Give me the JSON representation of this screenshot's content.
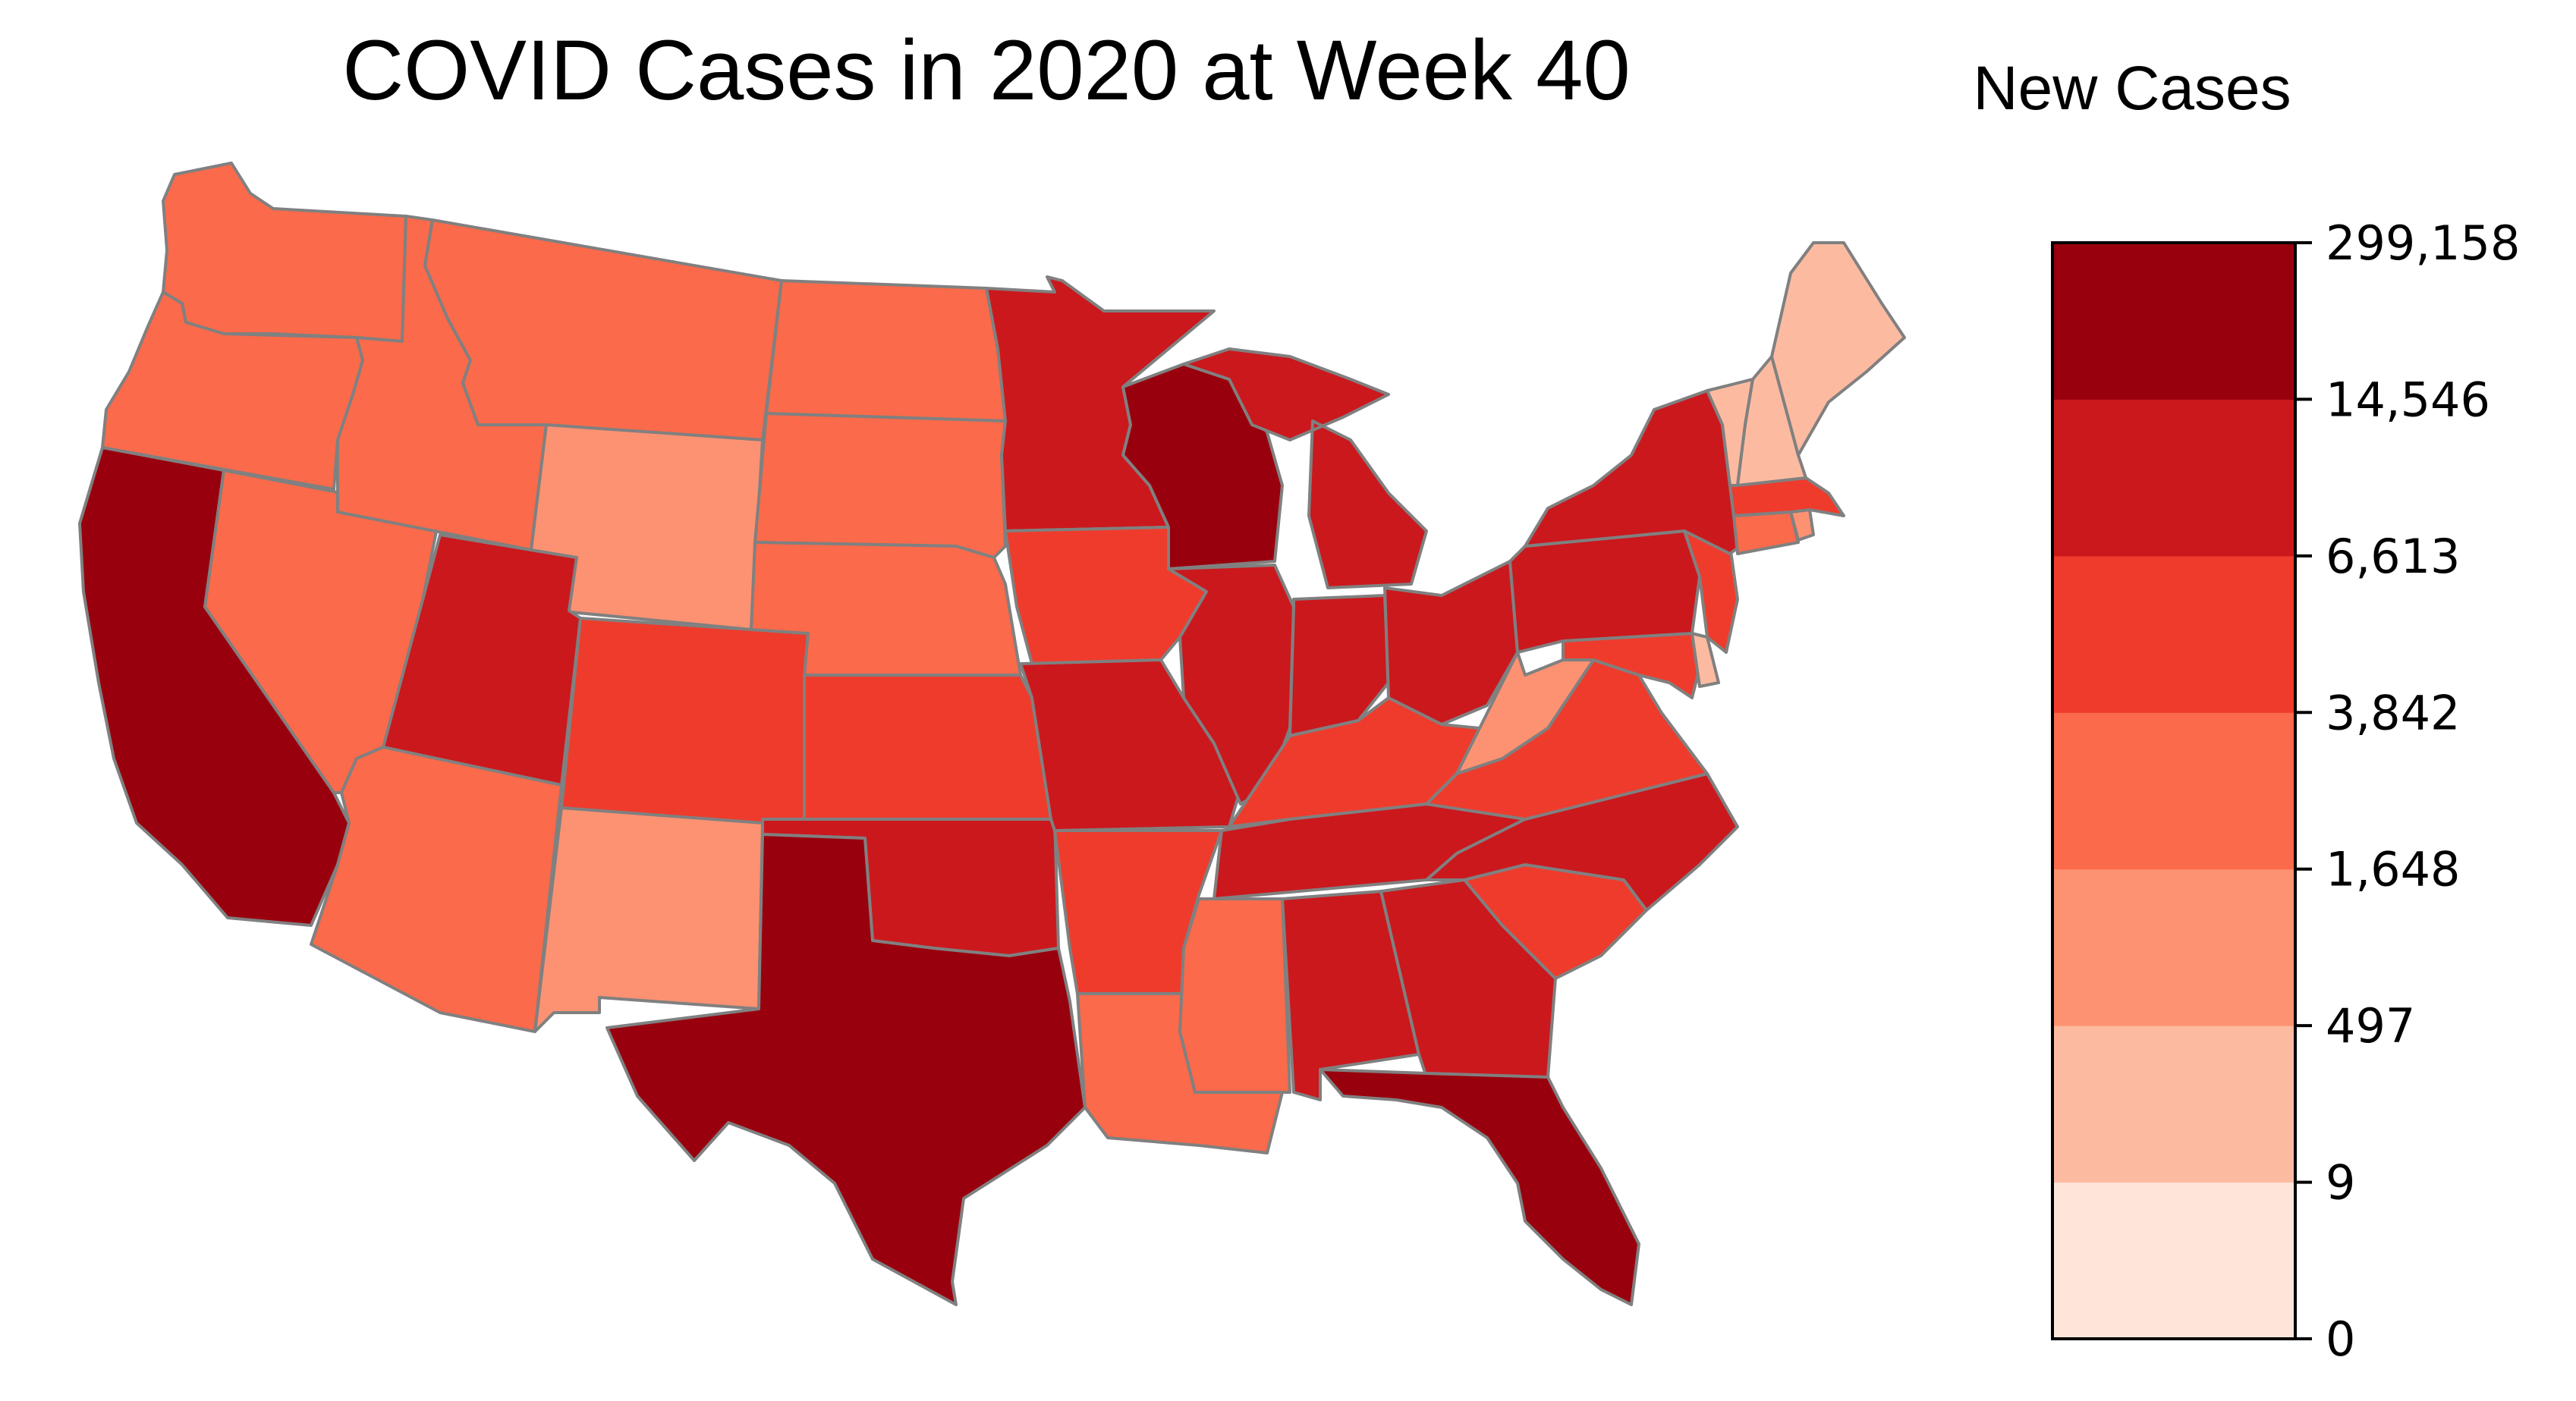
{
  "title": "COVID Cases in 2020 at Week 40",
  "legend": {
    "title": "New Cases",
    "ticks": [
      "299,158",
      "14,546",
      "6,613",
      "3,842",
      "1,648",
      "497",
      "9",
      "0"
    ],
    "colors": [
      "#fee5d9",
      "#fcbba1",
      "#fc9272",
      "#fb6a4a",
      "#ef3b2c",
      "#cb181d",
      "#99000d"
    ],
    "border_color": "#808080"
  },
  "states": [
    {
      "id": "WA",
      "name": "Washington",
      "bin": 3
    },
    {
      "id": "OR",
      "name": "Oregon",
      "bin": 3
    },
    {
      "id": "CA",
      "name": "California",
      "bin": 6
    },
    {
      "id": "NV",
      "name": "Nevada",
      "bin": 3
    },
    {
      "id": "ID",
      "name": "Idaho",
      "bin": 3
    },
    {
      "id": "MT",
      "name": "Montana",
      "bin": 3
    },
    {
      "id": "WY",
      "name": "Wyoming",
      "bin": 2
    },
    {
      "id": "UT",
      "name": "Utah",
      "bin": 5
    },
    {
      "id": "AZ",
      "name": "Arizona",
      "bin": 3
    },
    {
      "id": "CO",
      "name": "Colorado",
      "bin": 4
    },
    {
      "id": "NM",
      "name": "New Mexico",
      "bin": 2
    },
    {
      "id": "ND",
      "name": "North Dakota",
      "bin": 3
    },
    {
      "id": "SD",
      "name": "South Dakota",
      "bin": 3
    },
    {
      "id": "NE",
      "name": "Nebraska",
      "bin": 3
    },
    {
      "id": "KS",
      "name": "Kansas",
      "bin": 4
    },
    {
      "id": "OK",
      "name": "Oklahoma",
      "bin": 5
    },
    {
      "id": "TX",
      "name": "Texas",
      "bin": 6
    },
    {
      "id": "MN",
      "name": "Minnesota",
      "bin": 5
    },
    {
      "id": "IA",
      "name": "Iowa",
      "bin": 4
    },
    {
      "id": "MO",
      "name": "Missouri",
      "bin": 5
    },
    {
      "id": "AR",
      "name": "Arkansas",
      "bin": 4
    },
    {
      "id": "LA",
      "name": "Louisiana",
      "bin": 3
    },
    {
      "id": "WI",
      "name": "Wisconsin",
      "bin": 6
    },
    {
      "id": "IL",
      "name": "Illinois",
      "bin": 5
    },
    {
      "id": "MI",
      "name": "Michigan",
      "bin": 5
    },
    {
      "id": "IN",
      "name": "Indiana",
      "bin": 5
    },
    {
      "id": "OH",
      "name": "Ohio",
      "bin": 5
    },
    {
      "id": "KY",
      "name": "Kentucky",
      "bin": 4
    },
    {
      "id": "TN",
      "name": "Tennessee",
      "bin": 5
    },
    {
      "id": "MS",
      "name": "Mississippi",
      "bin": 3
    },
    {
      "id": "AL",
      "name": "Alabama",
      "bin": 5
    },
    {
      "id": "GA",
      "name": "Georgia",
      "bin": 5
    },
    {
      "id": "FL",
      "name": "Florida",
      "bin": 6
    },
    {
      "id": "SC",
      "name": "South Carolina",
      "bin": 4
    },
    {
      "id": "NC",
      "name": "North Carolina",
      "bin": 5
    },
    {
      "id": "VA",
      "name": "Virginia",
      "bin": 4
    },
    {
      "id": "WV",
      "name": "West Virginia",
      "bin": 2
    },
    {
      "id": "MD",
      "name": "Maryland",
      "bin": 4
    },
    {
      "id": "DE",
      "name": "Delaware",
      "bin": 1
    },
    {
      "id": "PA",
      "name": "Pennsylvania",
      "bin": 5
    },
    {
      "id": "NJ",
      "name": "New Jersey",
      "bin": 4
    },
    {
      "id": "NY",
      "name": "New York",
      "bin": 5
    },
    {
      "id": "CT",
      "name": "Connecticut",
      "bin": 3
    },
    {
      "id": "RI",
      "name": "Rhode Island",
      "bin": 2
    },
    {
      "id": "MA",
      "name": "Massachusetts",
      "bin": 4
    },
    {
      "id": "VT",
      "name": "Vermont",
      "bin": 1
    },
    {
      "id": "NH",
      "name": "New Hampshire",
      "bin": 1
    },
    {
      "id": "ME",
      "name": "Maine",
      "bin": 1
    }
  ]
}
